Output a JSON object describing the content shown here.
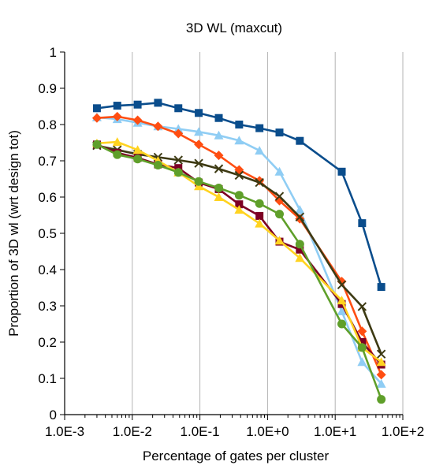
{
  "chart_data": {
    "type": "line",
    "title": "3D WL (maxcut)",
    "xlabel": "Percentage of gates per cluster",
    "ylabel": "Proportion of 3D wl (wrt design tot)",
    "xscale": "log",
    "xlim": [
      0.001,
      100
    ],
    "ylim": [
      0,
      1
    ],
    "x_ticks": [
      0.001,
      0.01,
      0.1,
      1,
      10,
      100
    ],
    "x_tick_labels": [
      "1.0E-3",
      "1.0E-2",
      "1.0E-1",
      "1.0E+0",
      "1.0E+1",
      "1.0E+2"
    ],
    "y_ticks": [
      0,
      0.1,
      0.2,
      0.3,
      0.4,
      0.5,
      0.6,
      0.7,
      0.8,
      0.9,
      1
    ],
    "y_tick_labels": [
      "0",
      "0.1",
      "0.2",
      "0.3",
      "0.4",
      "0.5",
      "0.6",
      "0.7",
      "0.8",
      "0.9",
      "1"
    ],
    "grid": "vertical",
    "legend": "none",
    "x": [
      0.003,
      0.006,
      0.012,
      0.024,
      0.048,
      0.096,
      0.19,
      0.38,
      0.76,
      1.5,
      3.0,
      12.5,
      25,
      48
    ],
    "series": [
      {
        "color": "#0a4d8c",
        "marker": "square",
        "values": [
          0.845,
          0.852,
          0.855,
          0.86,
          0.845,
          0.832,
          0.818,
          0.8,
          0.79,
          0.778,
          0.755,
          0.67,
          0.528,
          0.352
        ]
      },
      {
        "color": "#8fcdf4",
        "marker": "triangle",
        "values": [
          0.82,
          0.815,
          0.805,
          0.795,
          0.788,
          0.78,
          0.77,
          0.756,
          0.728,
          0.67,
          0.565,
          0.285,
          0.145,
          0.085
        ]
      },
      {
        "color": "#ff4e12",
        "marker": "diamond",
        "values": [
          0.818,
          0.822,
          0.812,
          0.795,
          0.775,
          0.745,
          0.715,
          0.675,
          0.645,
          0.59,
          0.54,
          0.367,
          0.23,
          0.11
        ]
      },
      {
        "color": "#3d3a13",
        "marker": "x",
        "values": [
          0.742,
          0.73,
          0.718,
          0.71,
          0.702,
          0.693,
          0.678,
          0.66,
          0.64,
          0.602,
          0.545,
          0.358,
          0.298,
          0.167
        ]
      },
      {
        "color": "#7d0024",
        "marker": "square",
        "values": [
          0.745,
          0.722,
          0.708,
          0.69,
          0.68,
          0.64,
          0.622,
          0.58,
          0.548,
          0.477,
          0.455,
          0.305,
          0.2,
          0.138
        ]
      },
      {
        "color": "#ffd320",
        "marker": "triangle",
        "values": [
          0.748,
          0.752,
          0.73,
          0.7,
          0.668,
          0.63,
          0.6,
          0.565,
          0.527,
          0.48,
          0.432,
          0.315,
          0.185,
          0.145
        ]
      },
      {
        "color": "#5f9f2a",
        "marker": "circle",
        "values": [
          0.745,
          0.717,
          0.705,
          0.688,
          0.668,
          0.643,
          0.625,
          0.605,
          0.582,
          0.553,
          0.47,
          0.25,
          0.185,
          0.042
        ]
      }
    ]
  }
}
